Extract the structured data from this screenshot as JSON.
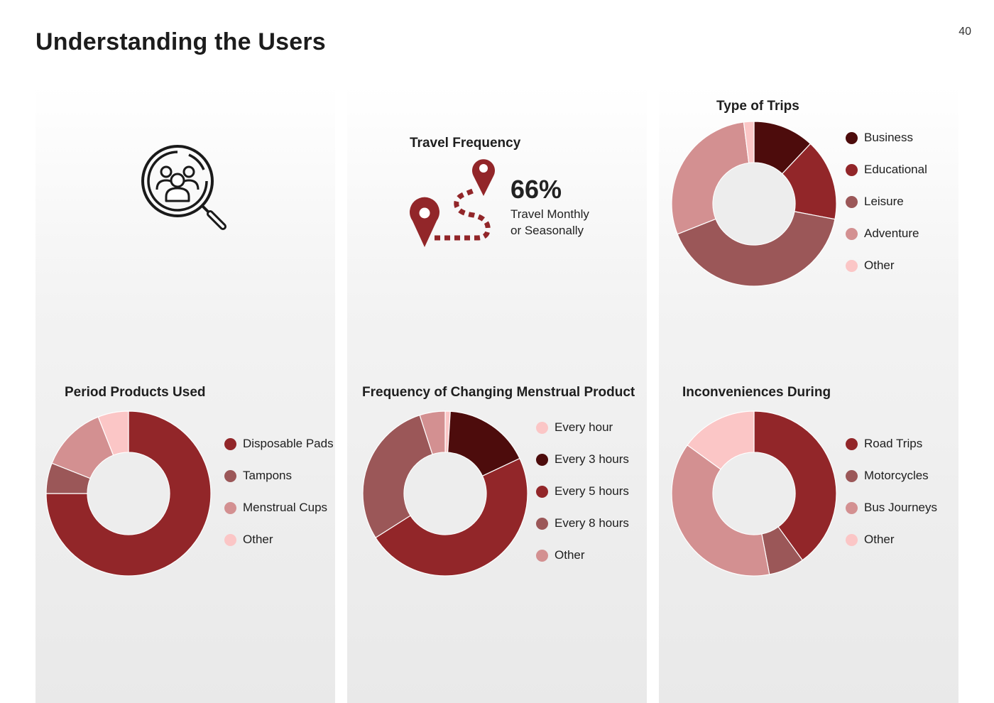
{
  "page": {
    "title": "Understanding the Users",
    "number": "40"
  },
  "icons": {
    "users_research": "magnifier-users-icon",
    "travel_route": "map-pin-route-icon"
  },
  "colors": {
    "darkest": "#4d0c0c",
    "dark_red": "#922629",
    "mauve": "#9b5758",
    "rose": "#d39091",
    "blush": "#fbc6c6"
  },
  "travel_frequency": {
    "title": "Travel Frequency",
    "percent": "66%",
    "caption_line1": "Travel Monthly",
    "caption_line2": "or Seasonally"
  },
  "chart_data": [
    {
      "id": "type-of-trips",
      "type": "pie",
      "title": "Type of Trips",
      "categories": [
        "Business",
        "Educational",
        "Leisure",
        "Adventure",
        "Other"
      ],
      "values": [
        12,
        16,
        41,
        29,
        2
      ],
      "colors": [
        "#4d0c0c",
        "#922629",
        "#9b5758",
        "#d39091",
        "#fbc6c6"
      ],
      "legend_placement": "right"
    },
    {
      "id": "period-products",
      "type": "pie",
      "title": "Period Products Used",
      "categories": [
        "Disposable Pads",
        "Tampons",
        "Menstrual Cups",
        "Other"
      ],
      "values": [
        75,
        6,
        13,
        6
      ],
      "colors": [
        "#922629",
        "#9b5758",
        "#d39091",
        "#fbc6c6"
      ],
      "legend_placement": "right"
    },
    {
      "id": "changing-frequency",
      "type": "pie",
      "title": "Frequency of Changing Menstrual Product",
      "categories": [
        "Every hour",
        "Every 3 hours",
        "Every 5 hours",
        "Every 8 hours",
        "Other"
      ],
      "values": [
        1,
        17,
        48,
        29,
        5
      ],
      "colors": [
        "#fbc6c6",
        "#4d0c0c",
        "#922629",
        "#9b5758",
        "#d39091"
      ],
      "legend_placement": "right"
    },
    {
      "id": "inconveniences",
      "type": "pie",
      "title": "Inconveniences During",
      "categories": [
        "Road Trips",
        "Motorcycles",
        "Bus Journeys",
        "Other"
      ],
      "values": [
        40,
        7,
        38,
        15
      ],
      "colors": [
        "#922629",
        "#9b5758",
        "#d39091",
        "#fbc6c6"
      ],
      "legend_placement": "right"
    }
  ]
}
